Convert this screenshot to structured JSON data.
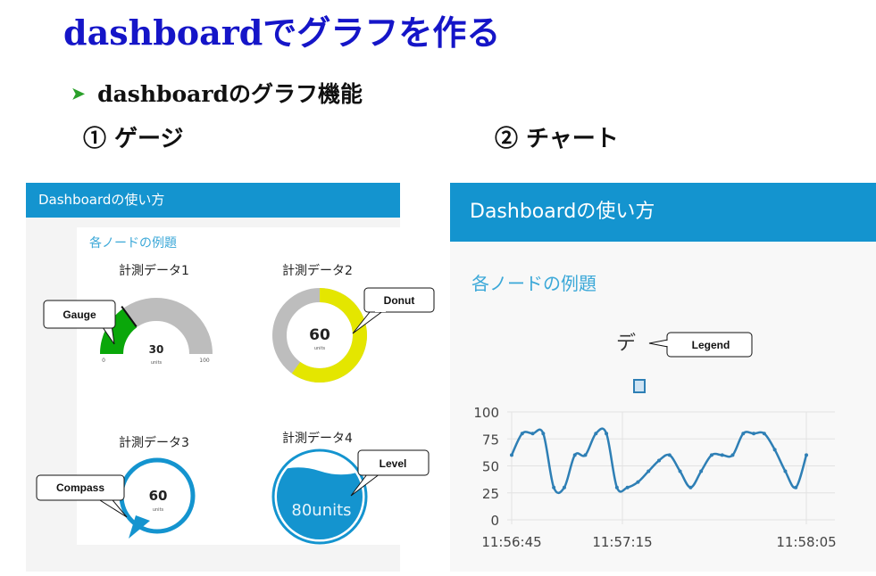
{
  "slide": {
    "title": "dashboardでグラフを作る",
    "bullet": "dashboardのグラフ機能",
    "sub1": "① ゲージ",
    "sub2": "② チャート"
  },
  "left_panel": {
    "header": "Dashboardの使い方",
    "group_title": "各ノードの例題",
    "widgets": [
      {
        "label": "計測データ1",
        "type": "gauge",
        "value": "30",
        "units": "units",
        "min": "0",
        "max": "100",
        "level": 0.3,
        "color": "#0aa70a"
      },
      {
        "label": "計測データ2",
        "type": "donut",
        "value": "60",
        "units": "units",
        "level": 0.6,
        "color": "#e4e600"
      },
      {
        "label": "計測データ3",
        "type": "compass",
        "value": "60",
        "units": "units",
        "color": "#1494cf"
      },
      {
        "label": "計測データ4",
        "type": "level",
        "value_text": "80units",
        "level": 0.8,
        "color": "#1494cf"
      }
    ],
    "callouts": {
      "gauge": "Gauge",
      "donut": "Donut",
      "compass": "Compass",
      "level": "Level"
    }
  },
  "right_panel": {
    "header": "Dashboardの使い方",
    "group_title": "各ノードの例題",
    "legend_text": "デ",
    "callout_legend": "Legend",
    "chart_color": "#2e7fb5"
  },
  "chart_data": {
    "type": "line",
    "title": "デ",
    "xlabel": "",
    "ylabel": "",
    "ylim": [
      0,
      100
    ],
    "yticks": [
      "100",
      "75",
      "50",
      "25",
      "0"
    ],
    "xticks": [
      "11:56:45",
      "11:57:15",
      "11:58:05"
    ],
    "x": [
      0,
      1,
      2,
      3,
      4,
      5,
      6,
      7,
      8,
      9,
      10,
      11,
      12,
      13,
      14,
      15,
      16,
      17,
      18,
      19,
      20,
      21,
      22,
      23,
      24,
      25,
      26,
      27,
      28
    ],
    "series": [
      {
        "values": [
          60,
          80,
          80,
          80,
          30,
          30,
          60,
          60,
          80,
          80,
          30,
          30,
          35,
          45,
          55,
          60,
          45,
          30,
          45,
          60,
          60,
          60,
          80,
          80,
          80,
          65,
          45,
          30,
          60
        ]
      }
    ],
    "grid": true
  }
}
